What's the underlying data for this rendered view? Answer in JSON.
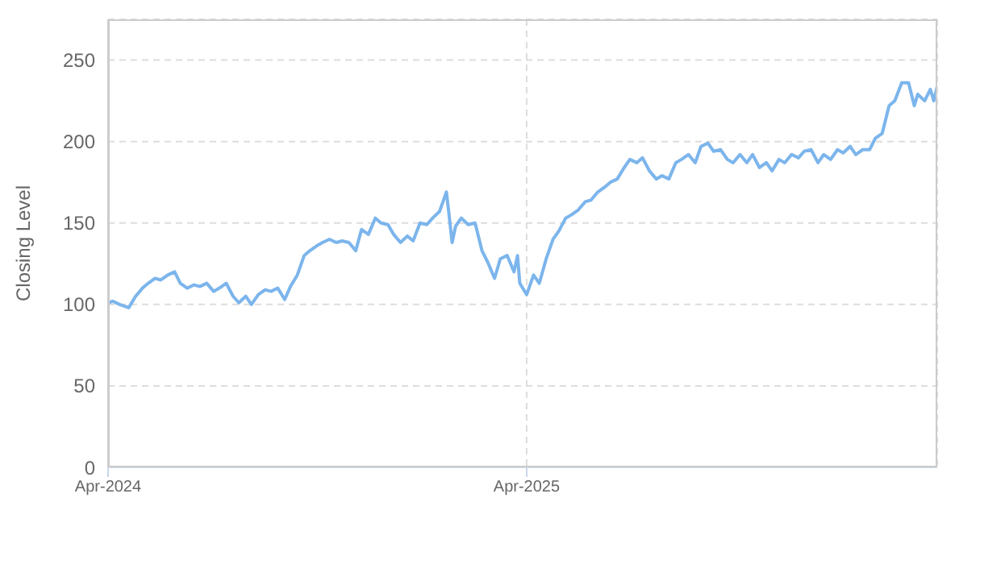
{
  "chart_data": {
    "type": "line",
    "ylabel": "Closing Level",
    "x": [
      "2024-04-01",
      "2024-04-05",
      "2024-04-11",
      "2024-04-19",
      "2024-04-25",
      "2024-05-01",
      "2024-05-06",
      "2024-05-12",
      "2024-05-17",
      "2024-05-23",
      "2024-05-29",
      "2024-06-03",
      "2024-06-09",
      "2024-06-15",
      "2024-06-20",
      "2024-06-26",
      "2024-07-02",
      "2024-07-07",
      "2024-07-13",
      "2024-07-19",
      "2024-07-24",
      "2024-07-30",
      "2024-08-04",
      "2024-08-10",
      "2024-08-16",
      "2024-08-21",
      "2024-08-27",
      "2024-09-02",
      "2024-09-07",
      "2024-09-13",
      "2024-09-19",
      "2024-09-24",
      "2024-09-30",
      "2024-10-05",
      "2024-10-11",
      "2024-10-17",
      "2024-10-22",
      "2024-10-28",
      "2024-11-03",
      "2024-11-08",
      "2024-11-14",
      "2024-11-20",
      "2024-11-25",
      "2024-12-01",
      "2024-12-06",
      "2024-12-12",
      "2024-12-18",
      "2024-12-23",
      "2024-12-29",
      "2025-01-04",
      "2025-01-09",
      "2025-01-15",
      "2025-01-21",
      "2025-01-23",
      "2025-01-26",
      "2025-01-29",
      "2025-02-03",
      "2025-02-09",
      "2025-02-15",
      "2025-02-21",
      "2025-02-26",
      "2025-03-04",
      "2025-03-09",
      "2025-03-15",
      "2025-03-21",
      "2025-03-24",
      "2025-03-26",
      "2025-04-01",
      "2025-04-07",
      "2025-04-12",
      "2025-04-18",
      "2025-04-24",
      "2025-04-29",
      "2025-05-05",
      "2025-05-10",
      "2025-05-16",
      "2025-05-22",
      "2025-05-27",
      "2025-06-02",
      "2025-06-08",
      "2025-06-13",
      "2025-06-19",
      "2025-06-25",
      "2025-06-30",
      "2025-07-06",
      "2025-07-11",
      "2025-07-17",
      "2025-07-23",
      "2025-07-28",
      "2025-08-03",
      "2025-08-09",
      "2025-08-14",
      "2025-08-20",
      "2025-08-26",
      "2025-08-31",
      "2025-09-06",
      "2025-09-11",
      "2025-09-17",
      "2025-09-23",
      "2025-09-28",
      "2025-10-04",
      "2025-10-10",
      "2025-10-15",
      "2025-10-21",
      "2025-10-27",
      "2025-11-01",
      "2025-11-07",
      "2025-11-12",
      "2025-11-18",
      "2025-11-24",
      "2025-11-29",
      "2025-12-05",
      "2025-12-11",
      "2025-12-16",
      "2025-12-22",
      "2025-12-28",
      "2026-01-02",
      "2026-01-08",
      "2026-01-13",
      "2026-01-19",
      "2026-01-25",
      "2026-01-30",
      "2026-02-05",
      "2026-02-11",
      "2026-02-16",
      "2026-02-22",
      "2026-02-28",
      "2026-03-05",
      "2026-03-08",
      "2026-03-14",
      "2026-03-19",
      "2026-03-22",
      "2026-03-25"
    ],
    "series": [
      {
        "color": "#7cb5ec",
        "values": [
          101,
          102,
          100,
          98,
          105,
          110,
          113,
          116,
          115,
          118,
          120,
          113,
          110,
          112,
          111,
          113,
          108,
          110,
          113,
          105,
          101,
          105,
          100,
          106,
          109,
          108,
          110,
          103,
          111,
          118,
          130,
          133,
          136,
          138,
          140,
          138,
          139,
          138,
          133,
          146,
          143,
          153,
          150,
          149,
          143,
          138,
          142,
          139,
          150,
          149,
          153,
          157,
          169,
          157,
          138,
          148,
          153,
          149,
          150,
          133,
          126,
          116,
          128,
          130,
          120,
          130,
          113,
          106,
          118,
          113,
          128,
          140,
          145,
          153,
          155,
          158,
          163,
          164,
          169,
          172,
          175,
          177,
          184,
          189,
          187,
          190,
          182,
          177,
          179,
          177,
          187,
          189,
          192,
          187,
          197,
          199,
          194,
          195,
          189,
          187,
          192,
          187,
          192,
          184,
          187,
          182,
          189,
          187,
          192,
          190,
          194,
          195,
          187,
          192,
          189,
          195,
          193,
          197,
          192,
          195,
          195,
          202,
          205,
          222,
          225,
          236,
          236,
          222,
          229,
          225,
          232,
          225,
          234
        ]
      }
    ],
    "xlim": [
      "2024-04-01",
      "2026-03-25"
    ],
    "xticks": [
      {
        "value": "2024-04-01",
        "label": "Apr-2024"
      },
      {
        "value": "2025-04-01",
        "label": "Apr-2025"
      }
    ],
    "ylim": [
      0,
      275
    ],
    "yticks": [
      0,
      50,
      100,
      150,
      200,
      250
    ],
    "grid": true,
    "line_style": "solid",
    "marker": "none"
  }
}
